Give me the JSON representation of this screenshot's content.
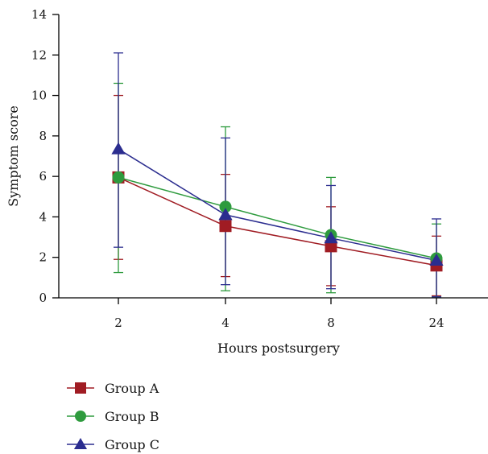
{
  "chart_data": {
    "type": "line",
    "title": "",
    "xlabel": "Hours postsurgery",
    "ylabel": "Symptom score",
    "categories": [
      "2",
      "4",
      "8",
      "24"
    ],
    "ylim": [
      0,
      14
    ],
    "yticks": [
      0,
      2,
      4,
      6,
      8,
      10,
      12,
      14
    ],
    "grid": false,
    "legend_position": "bottom-left",
    "series": [
      {
        "name": "Group A",
        "color": "#a01c23",
        "marker": "square",
        "values": [
          5.95,
          3.55,
          2.55,
          1.6
        ],
        "error_low": [
          1.9,
          1.05,
          0.6,
          0.1
        ],
        "error_high": [
          10.0,
          6.1,
          4.5,
          3.05
        ]
      },
      {
        "name": "Group B",
        "color": "#2e9b3e",
        "marker": "circle",
        "values": [
          5.95,
          4.5,
          3.1,
          1.95
        ],
        "error_low": [
          1.25,
          0.35,
          0.25,
          0.05
        ],
        "error_high": [
          10.6,
          8.45,
          5.95,
          3.65
        ]
      },
      {
        "name": "Group C",
        "color": "#2b2d8f",
        "marker": "triangle",
        "values": [
          7.35,
          4.1,
          2.95,
          1.85
        ],
        "error_low": [
          2.5,
          0.65,
          0.45,
          0.05
        ],
        "error_high": [
          12.1,
          7.9,
          5.55,
          3.9
        ]
      }
    ]
  }
}
